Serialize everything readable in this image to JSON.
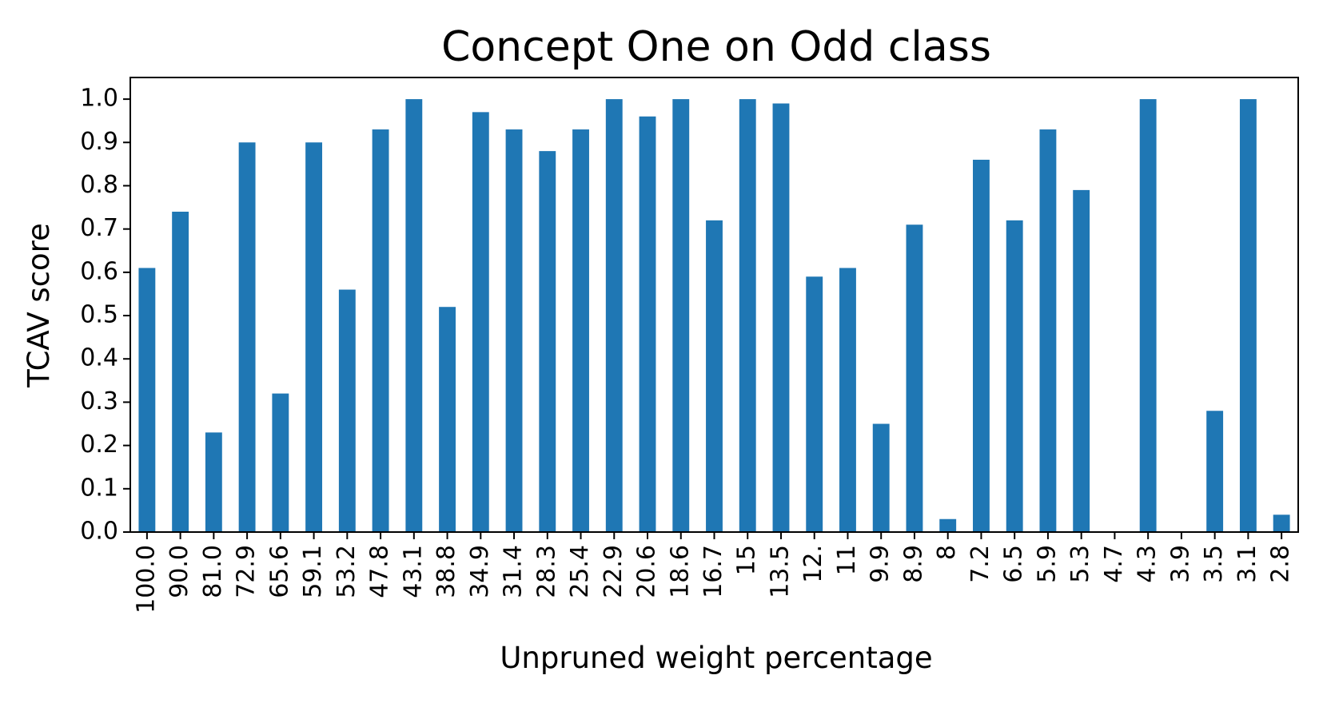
{
  "chart_data": {
    "type": "bar",
    "title": "Concept One on Odd class",
    "xlabel": "Unpruned weight percentage",
    "ylabel": "TCAV score",
    "ylim": [
      0.0,
      1.05
    ],
    "yticks": [
      "0.0",
      "0.1",
      "0.2",
      "0.3",
      "0.4",
      "0.5",
      "0.6",
      "0.7",
      "0.8",
      "0.9",
      "1.0"
    ],
    "categories": [
      "100.0",
      "90.0",
      "81.0",
      "72.9",
      "65.6",
      "59.1",
      "53.2",
      "47.8",
      "43.1",
      "38.8",
      "34.9",
      "31.4",
      "28.3",
      "25.4",
      "22.9",
      "20.6",
      "18.6",
      "16.7",
      "15",
      "13.5",
      "12.",
      "11",
      "9.9",
      "8.9",
      "8",
      "7.2",
      "6.5",
      "5.9",
      "5.3",
      "4.7",
      "4.3",
      "3.9",
      "3.5",
      "3.1",
      "2.8"
    ],
    "values": [
      0.61,
      0.74,
      0.23,
      0.9,
      0.32,
      0.9,
      0.56,
      0.93,
      1.0,
      0.52,
      0.97,
      0.93,
      0.88,
      0.93,
      1.0,
      0.96,
      1.0,
      0.72,
      1.0,
      0.99,
      0.59,
      0.61,
      0.25,
      0.71,
      0.03,
      0.86,
      0.72,
      0.93,
      0.79,
      0.0,
      1.0,
      0.0,
      0.28,
      1.0,
      0.04
    ],
    "bar_color": "#1f77b4",
    "grid": false,
    "legend": false
  }
}
